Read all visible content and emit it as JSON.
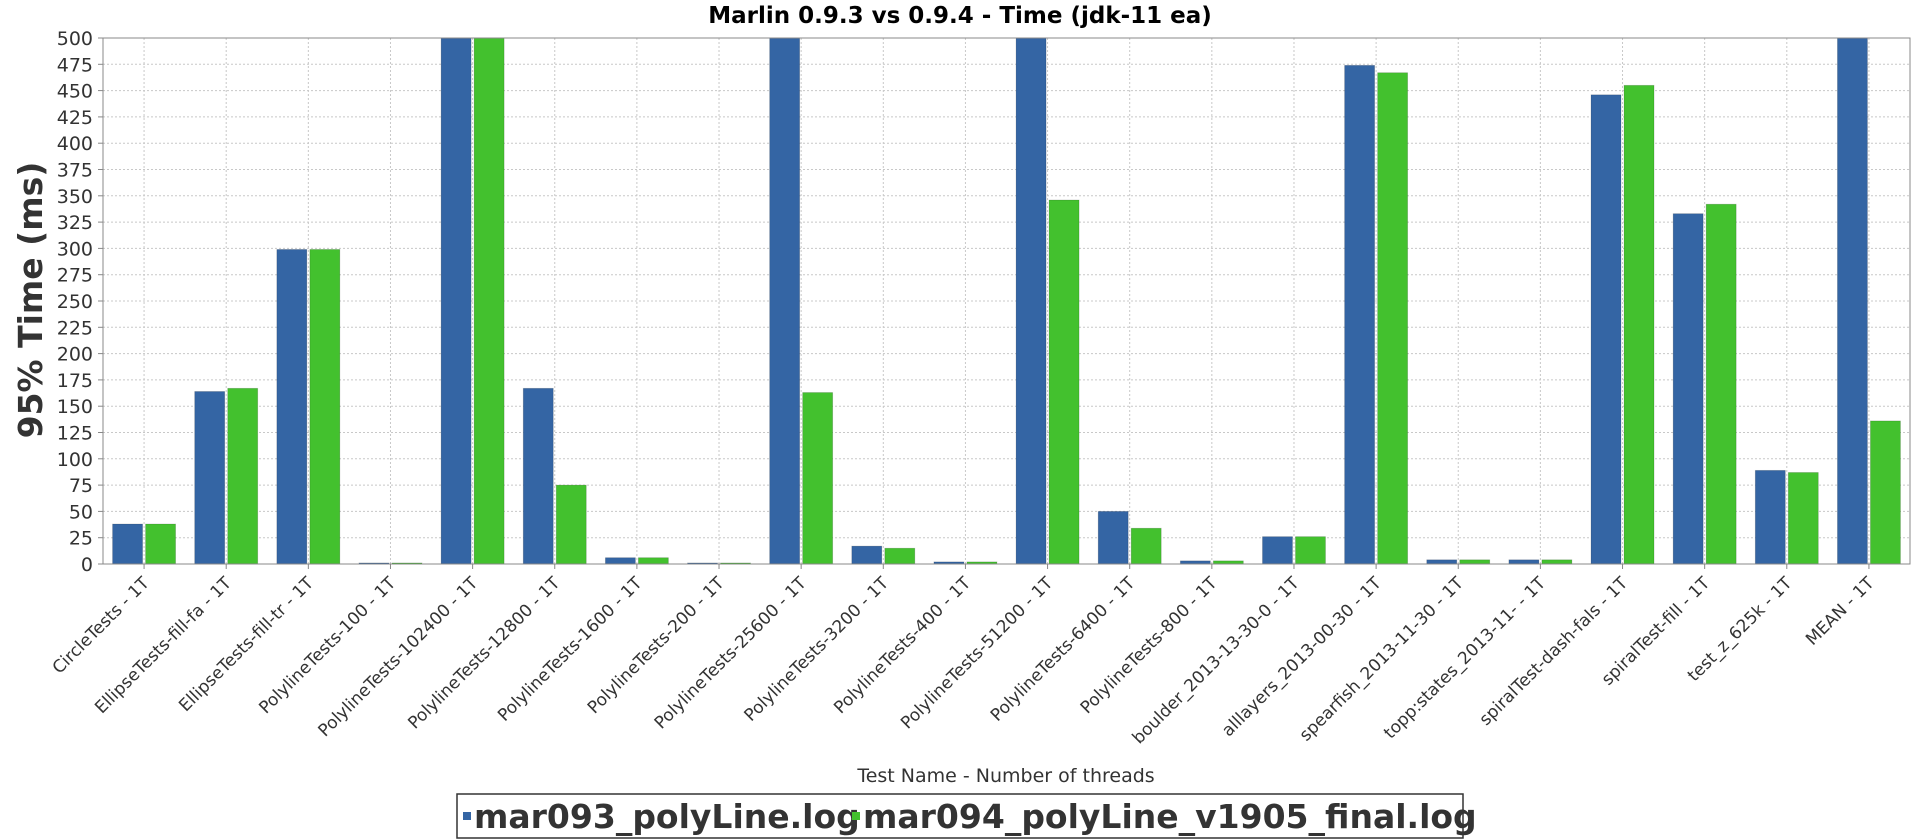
{
  "chart_data": {
    "type": "bar",
    "title": "Marlin 0.9.3 vs 0.9.4 - Time (jdk-11 ea)",
    "xlabel": "Test Name - Number of threads",
    "ylabel": "95% Time (ms)",
    "ylim": [
      0,
      500
    ],
    "yticks": [
      0,
      25,
      50,
      75,
      100,
      125,
      150,
      175,
      200,
      225,
      250,
      275,
      300,
      325,
      350,
      375,
      400,
      425,
      450,
      475,
      500
    ],
    "grid": true,
    "legend_position": "bottom",
    "categories": [
      "CircleTests - 1T",
      "EllipseTests-fill-fa - 1T",
      "EllipseTests-fill-tr - 1T",
      "PolylineTests-100 - 1T",
      "PolylineTests-102400 - 1T",
      "PolylineTests-12800 - 1T",
      "PolylineTests-1600 - 1T",
      "PolylineTests-200 - 1T",
      "PolylineTests-25600 - 1T",
      "PolylineTests-3200 - 1T",
      "PolylineTests-400 - 1T",
      "PolylineTests-51200 - 1T",
      "PolylineTests-6400 - 1T",
      "PolylineTests-800 - 1T",
      "boulder_2013-13-30-0 - 1T",
      "alllayers_2013-00-30 - 1T",
      "spearfish_2013-11-30 - 1T",
      "topp:states_2013-11- - 1T",
      "spiralTest-dash-fals - 1T",
      "spiralTest-fill - 1T",
      "test_z_625k - 1T",
      "MEAN - 1T"
    ],
    "series": [
      {
        "name": "mar093_polyLine.log",
        "color": "#3465a4",
        "values": [
          38,
          164,
          299,
          1,
          500,
          167,
          6,
          1,
          500,
          17,
          2,
          500,
          50,
          3,
          26,
          474,
          4,
          4,
          446,
          333,
          89,
          500
        ]
      },
      {
        "name": "mar094_polyLine_v1905_final.log",
        "color": "#43c12e",
        "values": [
          38,
          167,
          299,
          1,
          500,
          75,
          6,
          1,
          163,
          15,
          2,
          346,
          34,
          3,
          26,
          467,
          4,
          4,
          455,
          342,
          87,
          136
        ]
      }
    ]
  }
}
